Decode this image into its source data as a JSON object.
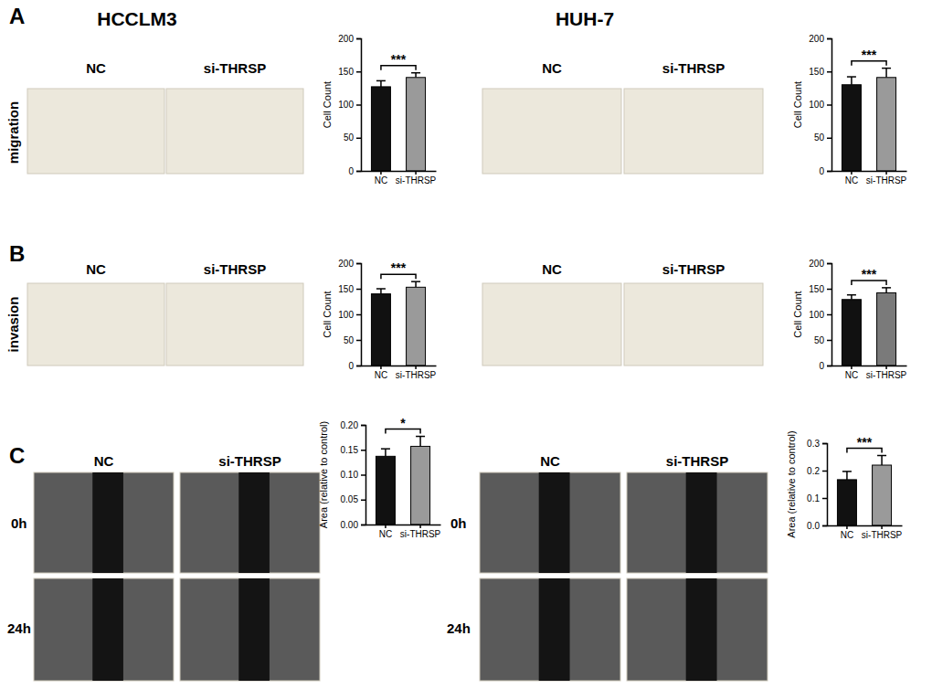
{
  "figure": {
    "panels": [
      {
        "label": "A",
        "row_label": "migration"
      },
      {
        "label": "B",
        "row_label": "invasion"
      },
      {
        "label": "C"
      }
    ],
    "cell_lines": [
      "HCCLM3",
      "HUH-7"
    ],
    "groups": [
      "NC",
      "si-THRSP"
    ],
    "time_points": [
      "0h",
      "24h"
    ]
  },
  "chart_data": [
    {
      "type": "bar",
      "categories": [
        "NC",
        "si-THRSP"
      ],
      "values": [
        127,
        141
      ],
      "errors": [
        9,
        7
      ],
      "colors": [
        "#111111",
        "#9a9a9a"
      ],
      "ylabel": "Cell Count",
      "ylim": [
        0,
        200
      ],
      "yticks": [
        0,
        50,
        100,
        150,
        200
      ],
      "annotation": "***"
    },
    {
      "type": "bar",
      "categories": [
        "NC",
        "si-THRSP"
      ],
      "values": [
        130,
        141
      ],
      "errors": [
        12,
        14
      ],
      "colors": [
        "#111111",
        "#9a9a9a"
      ],
      "ylabel": "Cell Count",
      "ylim": [
        0,
        200
      ],
      "yticks": [
        0,
        50,
        100,
        150,
        200
      ],
      "annotation": "***"
    },
    {
      "type": "bar",
      "categories": [
        "NC",
        "si-THRSP"
      ],
      "values": [
        140,
        153
      ],
      "errors": [
        10,
        11
      ],
      "colors": [
        "#111111",
        "#9a9a9a"
      ],
      "ylabel": "Cell Count",
      "ylim": [
        0,
        200
      ],
      "yticks": [
        0,
        50,
        100,
        150,
        200
      ],
      "annotation": "***"
    },
    {
      "type": "bar",
      "categories": [
        "NC",
        "si-THRSP"
      ],
      "values": [
        129,
        142
      ],
      "errors": [
        9,
        10
      ],
      "colors": [
        "#111111",
        "#7a7a7a"
      ],
      "ylabel": "Cell Count",
      "ylim": [
        0,
        200
      ],
      "yticks": [
        0,
        50,
        100,
        150,
        200
      ],
      "annotation": "***"
    },
    {
      "type": "bar",
      "categories": [
        "NC",
        "si-THRSP"
      ],
      "values": [
        0.137,
        0.157
      ],
      "errors": [
        0.015,
        0.02
      ],
      "colors": [
        "#111111",
        "#9a9a9a"
      ],
      "ylabel": "Area (relative to control)",
      "ylim": [
        0,
        0.2
      ],
      "yticks": [
        {
          "value": 0,
          "label": "0.00"
        },
        {
          "value": 0.05,
          "label": "0.05"
        },
        {
          "value": 0.1,
          "label": "0.10"
        },
        {
          "value": 0.15,
          "label": "0.15"
        },
        {
          "value": 0.2,
          "label": "0.20"
        }
      ],
      "annotation": "*"
    },
    {
      "type": "bar",
      "categories": [
        "NC",
        "si-THRSP"
      ],
      "values": [
        0.167,
        0.22
      ],
      "errors": [
        0.03,
        0.035
      ],
      "colors": [
        "#111111",
        "#9a9a9a"
      ],
      "ylabel": "Area (relative to control)",
      "ylim": [
        0,
        0.3
      ],
      "yticks": [
        {
          "value": 0,
          "label": "0.0"
        },
        {
          "value": 0.1,
          "label": "0.1"
        },
        {
          "value": 0.2,
          "label": "0.2"
        },
        {
          "value": 0.3,
          "label": "0.3"
        }
      ],
      "annotation": "***"
    }
  ]
}
